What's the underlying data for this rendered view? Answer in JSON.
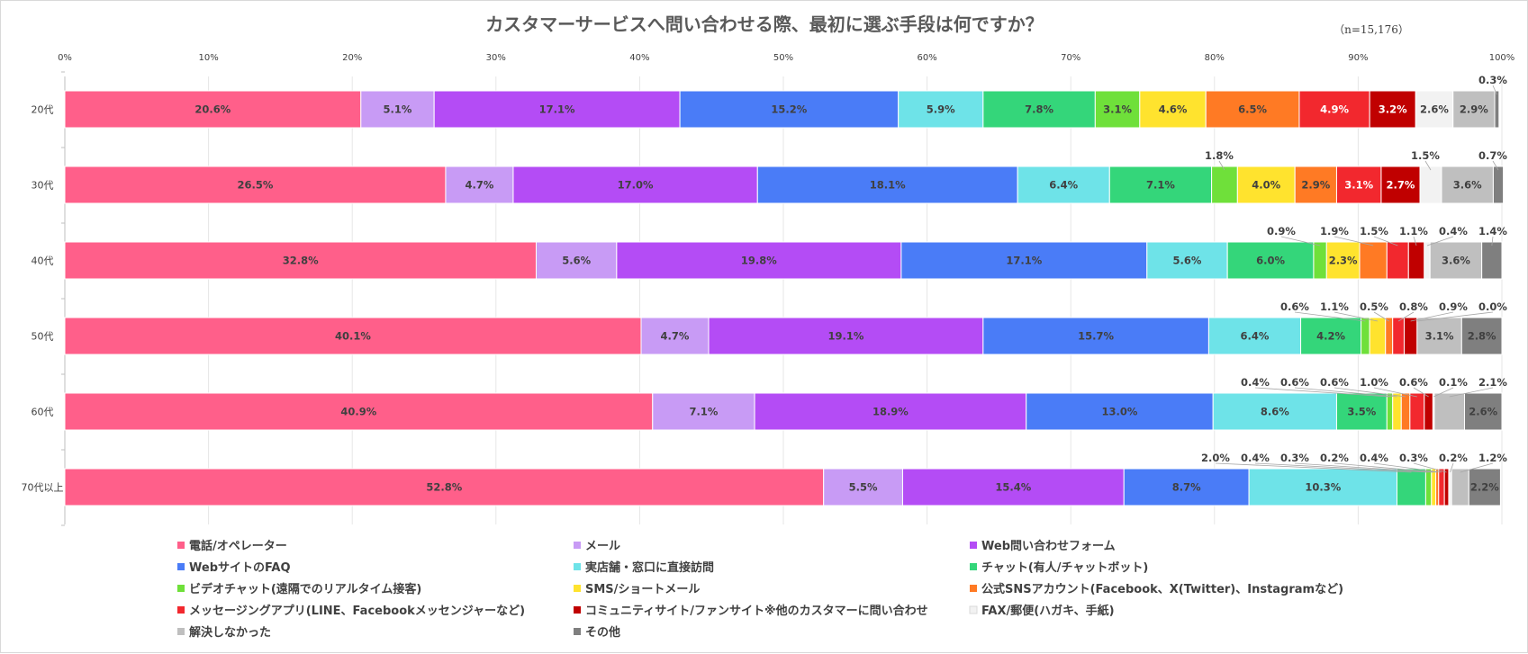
{
  "chart_data": {
    "type": "bar",
    "orientation": "horizontal",
    "stacked": true,
    "title": "カスタマーサービスへ問い合わせる際、最初に選ぶ手段は何ですか？",
    "note": "（n=15,176）",
    "categories": [
      "20代",
      "30代",
      "40代",
      "50代",
      "60代",
      "70代以上"
    ],
    "xlim": [
      0,
      100
    ],
    "x_ticks": [
      "0%",
      "10%",
      "20%",
      "30%",
      "40%",
      "50%",
      "60%",
      "70%",
      "80%",
      "90%",
      "100%"
    ],
    "grid": true,
    "legend_position": "bottom",
    "series": [
      {
        "name": "電話/オペレーター",
        "color": "#ff5f8a",
        "values": [
          20.6,
          26.5,
          32.8,
          40.1,
          40.9,
          52.8
        ],
        "labels": [
          "20.6%",
          "26.5%",
          "32.8%",
          "40.1%",
          "40.9%",
          "52.8%"
        ]
      },
      {
        "name": "メール",
        "color": "#c89bf5",
        "values": [
          5.1,
          4.7,
          5.6,
          4.7,
          7.1,
          5.5
        ],
        "labels": [
          "5.1%",
          "4.7%",
          "5.6%",
          "4.7%",
          "7.1%",
          "5.5%"
        ]
      },
      {
        "name": "Web問い合わせフォーム",
        "color": "#b44cf5",
        "values": [
          17.1,
          17.0,
          19.8,
          19.1,
          18.9,
          15.4
        ],
        "labels": [
          "17.1%",
          "17.0%",
          "19.8%",
          "19.1%",
          "18.9%",
          "15.4%"
        ]
      },
      {
        "name": "WebサイトのFAQ",
        "color": "#4a7cf7",
        "values": [
          15.2,
          18.1,
          17.1,
          15.7,
          13.0,
          8.7
        ],
        "labels": [
          "15.2%",
          "18.1%",
          "17.1%",
          "15.7%",
          "13.0%",
          "8.7%"
        ]
      },
      {
        "name": "実店舗・窓口に直接訪問",
        "color": "#6ee3e8",
        "values": [
          5.9,
          6.4,
          5.6,
          6.4,
          8.6,
          10.3
        ],
        "labels": [
          "5.9%",
          "6.4%",
          "5.6%",
          "6.4%",
          "8.6%",
          "10.3%"
        ]
      },
      {
        "name": "チャット(有人/チャットボット)",
        "color": "#34d67a",
        "values": [
          7.8,
          7.1,
          6.0,
          4.2,
          3.5,
          2.0
        ],
        "labels": [
          "7.8%",
          "7.1%",
          "6.0%",
          "4.2%",
          "3.5%",
          "2.0%"
        ]
      },
      {
        "name": "ビデオチャット(遠隔でのリアルタイム接客)",
        "color": "#6fe03a",
        "values": [
          3.1,
          1.8,
          0.9,
          0.6,
          0.4,
          0.4
        ],
        "labels": [
          "3.1%",
          "1.8%",
          "0.9%",
          "0.6%",
          "0.4%",
          "0.4%"
        ]
      },
      {
        "name": "SMS/ショートメール",
        "color": "#ffe32e",
        "values": [
          4.6,
          4.0,
          2.3,
          1.1,
          0.6,
          0.3
        ],
        "labels": [
          "4.6%",
          "4.0%",
          "2.3%",
          "1.1%",
          "0.6%",
          "0.3%"
        ]
      },
      {
        "name": "公式SNSアカウント(Facebook、X(Twitter)、Instagramなど)",
        "color": "#ff7a24",
        "values": [
          6.5,
          2.9,
          1.9,
          0.5,
          0.6,
          0.2
        ],
        "labels": [
          "6.5%",
          "2.9%",
          "1.9%",
          "0.5%",
          "0.6%",
          "0.2%"
        ]
      },
      {
        "name": "メッセージングアプリ(LINE、Facebookメッセンジャーなど)",
        "color": "#f2282e",
        "values": [
          4.9,
          3.1,
          1.5,
          0.8,
          1.0,
          0.4
        ],
        "labels": [
          "4.9%",
          "3.1%",
          "1.5%",
          "0.8%",
          "1.0%",
          "0.4%"
        ]
      },
      {
        "name": "コミュニティサイト/ファンサイト※他のカスタマーに問い合わせ",
        "color": "#c00000",
        "values": [
          3.2,
          2.7,
          1.1,
          0.9,
          0.6,
          0.3
        ],
        "labels": [
          "3.2%",
          "2.7%",
          "1.1%",
          "0.9%",
          "0.6%",
          "0.3%"
        ]
      },
      {
        "name": "FAX/郵便(ハガキ、手紙)",
        "color": "#f2f2f2",
        "values": [
          2.6,
          1.5,
          0.4,
          0.0,
          0.1,
          0.2
        ],
        "labels": [
          "2.6%",
          "1.5%",
          "0.4%",
          "0.0%",
          "0.1%",
          "0.2%"
        ]
      },
      {
        "name": "解決しなかった",
        "color": "#bfbfbf",
        "values": [
          2.9,
          3.6,
          3.6,
          3.1,
          2.1,
          1.2
        ],
        "labels": [
          "2.9%",
          "3.6%",
          "3.6%",
          "3.1%",
          "2.1%",
          "1.2%"
        ]
      },
      {
        "name": "その他",
        "color": "#7f7f7f",
        "values": [
          0.3,
          0.7,
          1.4,
          2.8,
          2.6,
          2.2
        ],
        "labels": [
          "0.3%",
          "0.7%",
          "1.4%",
          "2.8%",
          "2.6%",
          "2.2%"
        ]
      }
    ]
  }
}
